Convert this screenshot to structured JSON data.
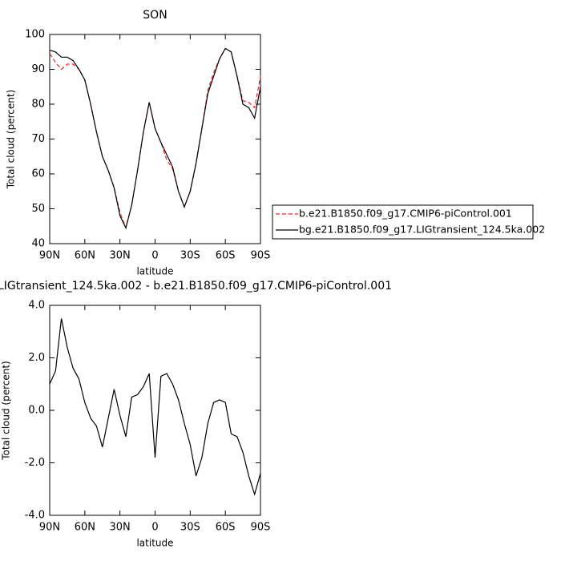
{
  "chart_data": [
    {
      "type": "line",
      "title": "SON",
      "xlabel": "latitude",
      "ylabel": "Total cloud (percent)",
      "x": [
        90,
        85,
        80,
        75,
        70,
        65,
        60,
        55,
        50,
        45,
        40,
        35,
        30,
        25,
        20,
        15,
        10,
        5,
        0,
        -5,
        -10,
        -15,
        -20,
        -25,
        -30,
        -35,
        -40,
        -45,
        -50,
        -55,
        -60,
        -65,
        -70,
        -75,
        -80,
        -85,
        -90
      ],
      "xlim": [
        90,
        -90
      ],
      "xticks": [
        {
          "value": 90,
          "label": "90N"
        },
        {
          "value": 60,
          "label": "60N"
        },
        {
          "value": 30,
          "label": "30N"
        },
        0,
        {
          "value": -30,
          "label": "30S"
        },
        {
          "value": -60,
          "label": "60S"
        },
        {
          "value": -90,
          "label": "90S"
        }
      ],
      "ylim": [
        40,
        100
      ],
      "yticks": [
        40,
        50,
        60,
        70,
        80,
        90,
        100
      ],
      "legend": "right",
      "series": [
        {
          "name": "b.e21.B1850.f09_g17.CMIP6-piControl.001",
          "color": "#e8262a",
          "linestyle": "dashed",
          "values": [
            94.5,
            92,
            90,
            91.5,
            91.5,
            90,
            87,
            80,
            72,
            65,
            61,
            56,
            49,
            44.5,
            51,
            61,
            72,
            80.5,
            73,
            69,
            64,
            61.5,
            55,
            50.5,
            55,
            63,
            73,
            84,
            89,
            93,
            96,
            95,
            88,
            81,
            80.5,
            79,
            88
          ]
        },
        {
          "name": "bg.e21.B1850.f09_g17.LIGtransient_124.5ka.002",
          "color": "#000000",
          "linestyle": "solid",
          "values": [
            95.5,
            95,
            93.5,
            93.5,
            92.5,
            90,
            87,
            80,
            72,
            65,
            61,
            56,
            48,
            44.5,
            51,
            61,
            72,
            80.5,
            73,
            69,
            65.5,
            62,
            55,
            50.5,
            55,
            63,
            73,
            83,
            88,
            93,
            96,
            95,
            88,
            80,
            79,
            76,
            85
          ]
        }
      ]
    },
    {
      "type": "line",
      "title": "LIGtransient_124.5ka.002 - b.e21.B1850.f09_g17.CMIP6-piControl.001",
      "xlabel": "latitude",
      "ylabel": "Total cloud (percent)",
      "x": [
        90,
        85,
        80,
        75,
        70,
        65,
        60,
        55,
        50,
        45,
        40,
        35,
        30,
        25,
        20,
        15,
        10,
        5,
        0,
        -5,
        -10,
        -15,
        -20,
        -25,
        -30,
        -35,
        -40,
        -45,
        -50,
        -55,
        -60,
        -65,
        -70,
        -75,
        -80,
        -85,
        -90
      ],
      "xlim": [
        90,
        -90
      ],
      "xticks": [
        {
          "value": 90,
          "label": "90N"
        },
        {
          "value": 60,
          "label": "60N"
        },
        {
          "value": 30,
          "label": "30N"
        },
        0,
        {
          "value": -30,
          "label": "30S"
        },
        {
          "value": -60,
          "label": "60S"
        },
        {
          "value": -90,
          "label": "90S"
        }
      ],
      "ylim": [
        -4,
        4
      ],
      "yticks": [
        {
          "value": -4,
          "label": "-4.0"
        },
        {
          "value": -2,
          "label": "-2.0"
        },
        {
          "value": 0,
          "label": "0.0"
        },
        {
          "value": 2,
          "label": "2.0"
        },
        {
          "value": 4,
          "label": "4.0"
        }
      ],
      "series": [
        {
          "color": "#000000",
          "linestyle": "solid",
          "values": [
            1.0,
            1.5,
            3.5,
            2.4,
            1.6,
            1.2,
            0.3,
            -0.3,
            -0.6,
            -1.4,
            -0.3,
            0.8,
            -0.2,
            -1.0,
            0.5,
            0.6,
            0.9,
            1.4,
            -1.8,
            1.3,
            1.4,
            1.0,
            0.4,
            -0.5,
            -1.3,
            -2.5,
            -1.8,
            -0.5,
            0.3,
            0.4,
            0.3,
            -0.9,
            -1.0,
            -1.6,
            -2.5,
            -3.2,
            -2.4
          ]
        }
      ]
    }
  ]
}
